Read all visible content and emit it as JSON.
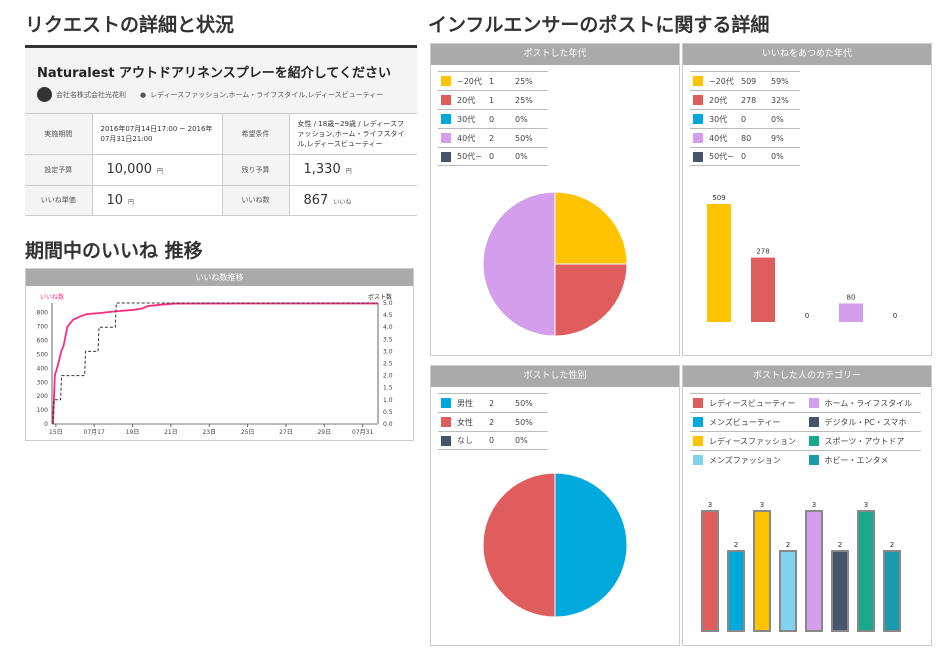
{
  "left": {
    "title": "リクエストの詳細と状況",
    "request_title": "Naturalest アウトドアリネンスプレーを紹介してください",
    "company": "会社名株式会社光花利",
    "tags": "レディースファッション,ホーム・ライフスタイル,レディースビューティー",
    "rows": [
      {
        "label": "実施期間",
        "value": "2016年07月14日17:00 ~ 2016年07月31日21:00",
        "label2": "希望条件",
        "value2": "女性 / 18歳~29歳 / レディースファッション,ホーム・ライフスタイル,レディースビューティー"
      },
      {
        "label": "設定予算",
        "value": "10,000",
        "unit": "円",
        "label2": "残り予算",
        "value2": "1,330",
        "unit2": "円"
      },
      {
        "label": "いいね単価",
        "value": "10",
        "unit": "円",
        "label2": "いいね数",
        "value2": "867",
        "unit2": "いいね"
      }
    ]
  },
  "trend": {
    "title": "期間中のいいね 推移",
    "chart_title": "いいね数推移",
    "left_axis": "いいね数",
    "right_axis": "ポスト数"
  },
  "right": {
    "title": "インフルエンサーのポストに関する詳細"
  },
  "chart_data": [
    {
      "type": "line",
      "title": "いいね数推移",
      "ylabel": "いいね数",
      "y2label": "ポスト数",
      "xlim": [
        14.8,
        31.8
      ],
      "ylim": [
        0,
        870
      ],
      "y2lim": [
        0,
        5
      ],
      "xticks": [
        {
          "x": 15,
          "label": "15日"
        },
        {
          "x": 17,
          "label": "07月17"
        },
        {
          "x": 19,
          "label": "19日"
        },
        {
          "x": 21,
          "label": "21日"
        },
        {
          "x": 23,
          "label": "23日"
        },
        {
          "x": 25,
          "label": "25日"
        },
        {
          "x": 27,
          "label": "27日"
        },
        {
          "x": 29,
          "label": "29日"
        },
        {
          "x": 31,
          "label": "07月31"
        }
      ],
      "yticks": [
        0,
        100,
        200,
        300,
        400,
        500,
        600,
        700,
        800
      ],
      "y2ticks": [
        "0.0",
        "0.5",
        "1.0",
        "1.5",
        "2.0",
        "2.5",
        "3.0",
        "3.5",
        "4.0",
        "4.5",
        "5.0"
      ],
      "series": [
        {
          "name": "いいね数",
          "color": "#ff2a7f",
          "points": [
            [
              14.85,
              0
            ],
            [
              14.95,
              350
            ],
            [
              15.1,
              420
            ],
            [
              15.3,
              530
            ],
            [
              15.4,
              560
            ],
            [
              15.6,
              700
            ],
            [
              15.9,
              750
            ],
            [
              16.3,
              775
            ],
            [
              16.6,
              790
            ],
            [
              17.3,
              798
            ],
            [
              18.1,
              810
            ],
            [
              19.0,
              820
            ],
            [
              19.5,
              830
            ],
            [
              19.8,
              848
            ],
            [
              20.5,
              858
            ],
            [
              21.2,
              866
            ],
            [
              31.8,
              867
            ]
          ]
        },
        {
          "name": "ポスト数",
          "color": "#333",
          "step": true,
          "points": [
            [
              14.85,
              0
            ],
            [
              14.9,
              1
            ],
            [
              15.25,
              1
            ],
            [
              15.3,
              2
            ],
            [
              16.5,
              2
            ],
            [
              16.55,
              3
            ],
            [
              17.2,
              3
            ],
            [
              17.25,
              4
            ],
            [
              18.1,
              4
            ],
            [
              18.15,
              5
            ],
            [
              31.8,
              5
            ]
          ]
        }
      ]
    },
    {
      "type": "pie",
      "title": "ポストした年代",
      "categories": [
        "~20代",
        "20代",
        "30代",
        "40代",
        "50代~"
      ],
      "values": [
        1,
        1,
        0,
        2,
        0
      ],
      "percent": [
        "25%",
        "25%",
        "0%",
        "50%",
        "0%"
      ],
      "colors": [
        "#ffc300",
        "#e05d5d",
        "#00a9dc",
        "#d39fec",
        "#45536b"
      ]
    },
    {
      "type": "bar",
      "title": "いいねをあつめた年代",
      "categories": [
        "~20代",
        "20代",
        "30代",
        "40代",
        "50代~"
      ],
      "values": [
        509,
        278,
        0,
        80,
        0
      ],
      "percent": [
        "59%",
        "32%",
        "0%",
        "9%",
        "0%"
      ],
      "colors": [
        "#ffc300",
        "#e05d5d",
        "#00a9dc",
        "#d39fec",
        "#45536b"
      ]
    },
    {
      "type": "pie",
      "title": "ポストした性別",
      "categories": [
        "男性",
        "女性",
        "なし"
      ],
      "values": [
        2,
        2,
        0
      ],
      "percent": [
        "50%",
        "50%",
        "0%"
      ],
      "colors": [
        "#00a9dc",
        "#e05d5d",
        "#45536b"
      ]
    },
    {
      "type": "bar",
      "title": "ポストした人のカテゴリー",
      "categories": [
        "レディースビューティー",
        "メンズビューティー",
        "レディースファッション",
        "メンズファッション",
        "ホーム・ライフスタイル",
        "デジタル・PC・スマホ",
        "スポーツ・アウトドア",
        "ホビー・エンタメ"
      ],
      "values": [
        3,
        2,
        3,
        2,
        3,
        2,
        3,
        2
      ],
      "colors": [
        "#e05d5d",
        "#00a9dc",
        "#ffc300",
        "#7fd3ec",
        "#d39fec",
        "#45536b",
        "#18a88c",
        "#1a9aad"
      ]
    }
  ]
}
